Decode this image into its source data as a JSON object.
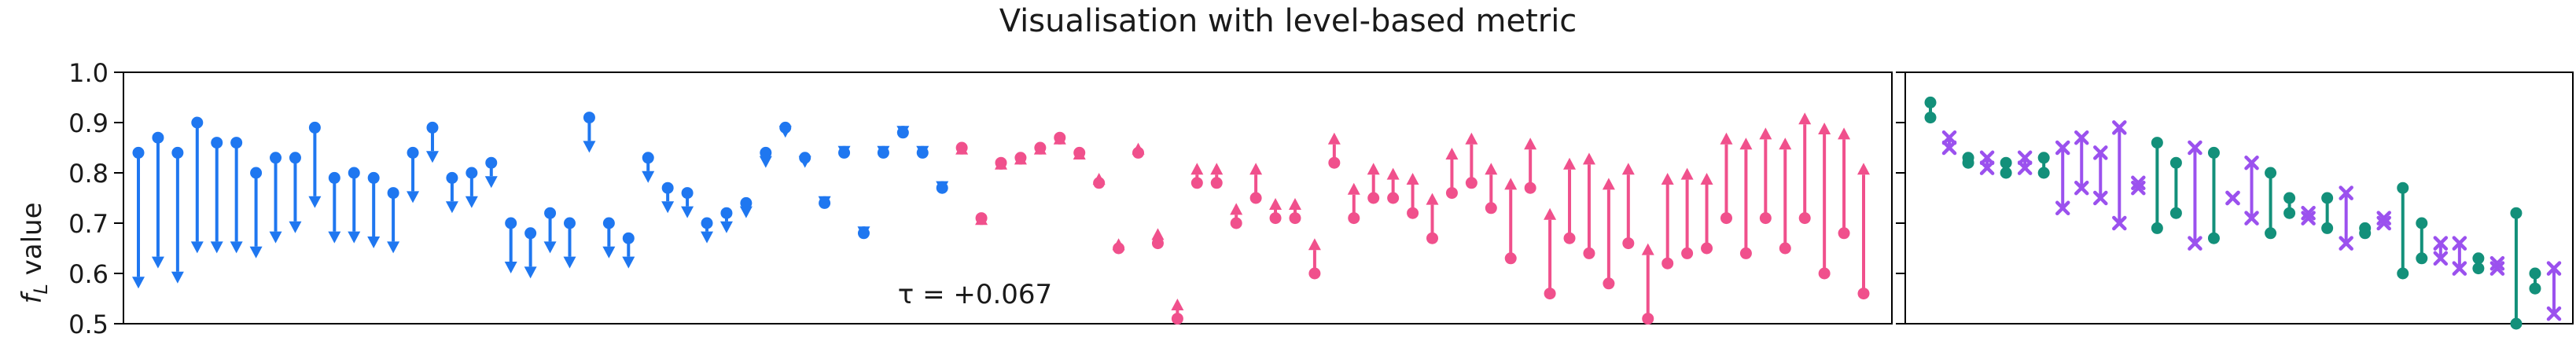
{
  "chart_data": [
    {
      "type": "dumbbell",
      "title": "Visualisation with level-based metric",
      "ylabel": "f_L value",
      "ylim": [
        0.5,
        1.0
      ],
      "yticks": [
        "0.5",
        "0.6",
        "0.7",
        "0.8",
        "0.9",
        "1.0"
      ],
      "annotation": "τ = +0.067",
      "colors": {
        "decrease": "#1f77f0",
        "increase": "#f0508c"
      },
      "pairs": [
        [
          0.84,
          0.57
        ],
        [
          0.87,
          0.61
        ],
        [
          0.84,
          0.58
        ],
        [
          0.9,
          0.64
        ],
        [
          0.86,
          0.64
        ],
        [
          0.86,
          0.64
        ],
        [
          0.8,
          0.63
        ],
        [
          0.83,
          0.66
        ],
        [
          0.83,
          0.68
        ],
        [
          0.89,
          0.73
        ],
        [
          0.79,
          0.66
        ],
        [
          0.8,
          0.66
        ],
        [
          0.79,
          0.65
        ],
        [
          0.76,
          0.64
        ],
        [
          0.84,
          0.74
        ],
        [
          0.89,
          0.82
        ],
        [
          0.79,
          0.72
        ],
        [
          0.8,
          0.73
        ],
        [
          0.82,
          0.77
        ],
        [
          0.7,
          0.6
        ],
        [
          0.68,
          0.59
        ],
        [
          0.72,
          0.64
        ],
        [
          0.7,
          0.61
        ],
        [
          0.91,
          0.84
        ],
        [
          0.7,
          0.63
        ],
        [
          0.67,
          0.61
        ],
        [
          0.83,
          0.78
        ],
        [
          0.77,
          0.72
        ],
        [
          0.76,
          0.71
        ],
        [
          0.7,
          0.66
        ],
        [
          0.72,
          0.68
        ],
        [
          0.74,
          0.71
        ],
        [
          0.84,
          0.81
        ],
        [
          0.89,
          0.87
        ],
        [
          0.83,
          0.81
        ],
        [
          0.74,
          0.73
        ],
        [
          0.84,
          0.83
        ],
        [
          0.68,
          0.67
        ],
        [
          0.84,
          0.83
        ],
        [
          0.88,
          0.87
        ],
        [
          0.84,
          0.83
        ],
        [
          0.77,
          0.76
        ],
        [
          0.85,
          0.86
        ],
        [
          0.71,
          0.72
        ],
        [
          0.82,
          0.83
        ],
        [
          0.83,
          0.84
        ],
        [
          0.85,
          0.86
        ],
        [
          0.87,
          0.88
        ],
        [
          0.84,
          0.85
        ],
        [
          0.78,
          0.8
        ],
        [
          0.65,
          0.67
        ],
        [
          0.84,
          0.86
        ],
        [
          0.66,
          0.69
        ],
        [
          0.51,
          0.55
        ],
        [
          0.78,
          0.82
        ],
        [
          0.78,
          0.82
        ],
        [
          0.7,
          0.74
        ],
        [
          0.75,
          0.82
        ],
        [
          0.71,
          0.75
        ],
        [
          0.71,
          0.75
        ],
        [
          0.6,
          0.67
        ],
        [
          0.82,
          0.88
        ],
        [
          0.71,
          0.78
        ],
        [
          0.75,
          0.82
        ],
        [
          0.75,
          0.81
        ],
        [
          0.72,
          0.8
        ],
        [
          0.67,
          0.76
        ],
        [
          0.76,
          0.85
        ],
        [
          0.78,
          0.88
        ],
        [
          0.73,
          0.82
        ],
        [
          0.63,
          0.79
        ],
        [
          0.77,
          0.87
        ],
        [
          0.56,
          0.73
        ],
        [
          0.67,
          0.83
        ],
        [
          0.64,
          0.84
        ],
        [
          0.58,
          0.79
        ],
        [
          0.66,
          0.82
        ],
        [
          0.51,
          0.66
        ],
        [
          0.62,
          0.8
        ],
        [
          0.64,
          0.81
        ],
        [
          0.65,
          0.8
        ],
        [
          0.71,
          0.88
        ],
        [
          0.64,
          0.87
        ],
        [
          0.71,
          0.89
        ],
        [
          0.65,
          0.87
        ],
        [
          0.71,
          0.92
        ],
        [
          0.6,
          0.9
        ],
        [
          0.68,
          0.89
        ],
        [
          0.56,
          0.82
        ]
      ]
    },
    {
      "type": "dumbbell",
      "colors": {
        "dot_series": "#13907a",
        "cross_series": "#9b51ee"
      },
      "ylim": [
        0.5,
        1.0
      ],
      "pairs": [
        {
          "marker": "dot",
          "top": 0.94,
          "bottom": 0.91
        },
        {
          "marker": "cross",
          "top": 0.87,
          "bottom": 0.85
        },
        {
          "marker": "dot",
          "top": 0.83,
          "bottom": 0.82
        },
        {
          "marker": "cross",
          "top": 0.83,
          "bottom": 0.81
        },
        {
          "marker": "dot",
          "top": 0.82,
          "bottom": 0.8
        },
        {
          "marker": "cross",
          "top": 0.83,
          "bottom": 0.81
        },
        {
          "marker": "dot",
          "top": 0.83,
          "bottom": 0.8
        },
        {
          "marker": "cross",
          "top": 0.85,
          "bottom": 0.73
        },
        {
          "marker": "cross",
          "top": 0.87,
          "bottom": 0.77
        },
        {
          "marker": "cross",
          "top": 0.84,
          "bottom": 0.75
        },
        {
          "marker": "cross",
          "top": 0.89,
          "bottom": 0.7
        },
        {
          "marker": "cross",
          "top": 0.78,
          "bottom": 0.77
        },
        {
          "marker": "dot",
          "top": 0.86,
          "bottom": 0.69
        },
        {
          "marker": "dot",
          "top": 0.82,
          "bottom": 0.72
        },
        {
          "marker": "cross",
          "top": 0.85,
          "bottom": 0.66
        },
        {
          "marker": "dot",
          "top": 0.84,
          "bottom": 0.67
        },
        {
          "marker": "cross",
          "top": 0.75,
          "bottom": 0.75
        },
        {
          "marker": "cross",
          "top": 0.82,
          "bottom": 0.71
        },
        {
          "marker": "dot",
          "top": 0.8,
          "bottom": 0.68
        },
        {
          "marker": "dot",
          "top": 0.75,
          "bottom": 0.72
        },
        {
          "marker": "cross",
          "top": 0.72,
          "bottom": 0.71
        },
        {
          "marker": "dot",
          "top": 0.75,
          "bottom": 0.69
        },
        {
          "marker": "cross",
          "top": 0.76,
          "bottom": 0.66
        },
        {
          "marker": "dot",
          "top": 0.69,
          "bottom": 0.68
        },
        {
          "marker": "cross",
          "top": 0.71,
          "bottom": 0.7
        },
        {
          "marker": "dot",
          "top": 0.77,
          "bottom": 0.6
        },
        {
          "marker": "dot",
          "top": 0.7,
          "bottom": 0.63
        },
        {
          "marker": "cross",
          "top": 0.66,
          "bottom": 0.63
        },
        {
          "marker": "cross",
          "top": 0.66,
          "bottom": 0.61
        },
        {
          "marker": "dot",
          "top": 0.63,
          "bottom": 0.61
        },
        {
          "marker": "cross",
          "top": 0.62,
          "bottom": 0.61
        },
        {
          "marker": "dot",
          "top": 0.72,
          "bottom": 0.5
        },
        {
          "marker": "dot",
          "top": 0.6,
          "bottom": 0.57
        },
        {
          "marker": "cross",
          "top": 0.61,
          "bottom": 0.52
        }
      ]
    }
  ]
}
